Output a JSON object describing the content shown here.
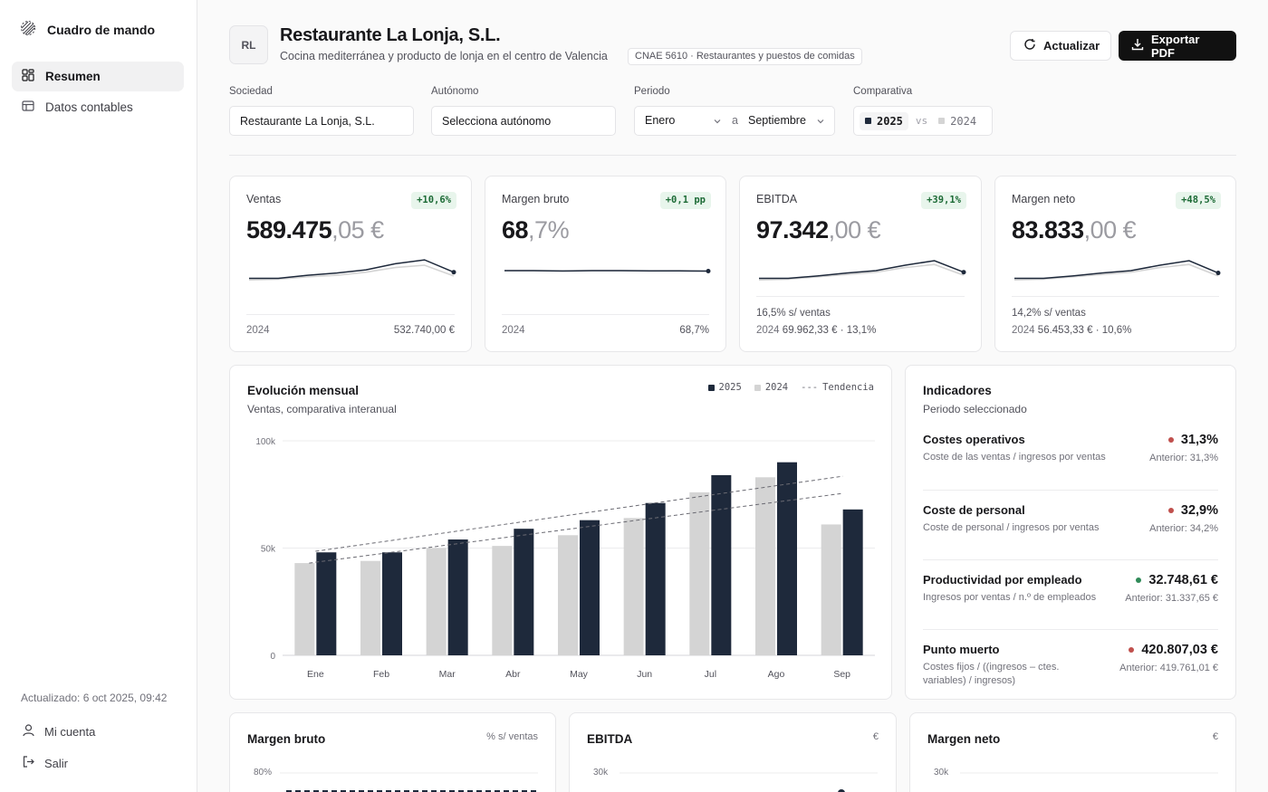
{
  "sidebar": {
    "brand": "Cuadro de mando",
    "items": [
      {
        "label": "Resumen",
        "icon": "dashboard-icon"
      },
      {
        "label": "Datos contables",
        "icon": "table-icon"
      }
    ],
    "updated": "Actualizado: 6 oct 2025, 09:42",
    "account": "Mi cuenta",
    "logout": "Salir"
  },
  "header": {
    "initials": "RL",
    "title": "Restaurante La Lonja, S.L.",
    "subtitle": "Cocina mediterránea y producto de lonja en el centro de Valencia",
    "cnae": "CNAE 5610 · Restaurantes y puestos de comidas",
    "refresh": "Actualizar",
    "export": "Exportar PDF"
  },
  "filters": {
    "sociedad_label": "Sociedad",
    "sociedad_value": "Restaurante La Lonja, S.L.",
    "autonomo_label": "Autónomo",
    "autonomo_value": "Selecciona autónomo",
    "periodo_label": "Periodo",
    "periodo_from": "Enero",
    "periodo_sep": "a",
    "periodo_to": "Septiembre",
    "comparativa_label": "Comparativa",
    "year_a": "2025",
    "vs": "vs",
    "year_b": "2024"
  },
  "kpis": [
    {
      "label": "Ventas",
      "badge": "+10,6%",
      "int": "589.475",
      "frac": ",05 €",
      "foot_left": "2024",
      "foot_right": "532.740,00 €"
    },
    {
      "label": "Margen bruto",
      "badge": "+0,1 pp",
      "int": "68",
      "frac": ",7%",
      "foot_left": "2024",
      "foot_right": "68,7%"
    },
    {
      "label": "EBITDA",
      "badge": "+39,1%",
      "int": "97.342",
      "frac": ",00 €",
      "sub": "16,5% s/ ventas",
      "prev_year": "2024",
      "prev": "69.962,33 € · 13,1%"
    },
    {
      "label": "Margen neto",
      "badge": "+48,5%",
      "int": "83.833",
      "frac": ",00 €",
      "sub": "14,2% s/ ventas",
      "prev_year": "2024",
      "prev": "56.453,33 € · 10,6%"
    }
  ],
  "monthly": {
    "title": "Evolución mensual",
    "subtitle": "Ventas, comparativa interanual",
    "legend": [
      "2025",
      "2024",
      "Tendencia"
    ],
    "legend_trend_marker": "---"
  },
  "indicators": {
    "title": "Indicadores",
    "subtitle": "Periodo seleccionado",
    "items": [
      {
        "name": "Costes operativos",
        "desc": "Coste de las ventas / ingresos por ventas",
        "value": "31,3%",
        "prev": "Anterior: 31,3%",
        "status": "bad"
      },
      {
        "name": "Coste de personal",
        "desc": "Coste de personal / ingresos por ventas",
        "value": "32,9%",
        "prev": "Anterior: 34,2%",
        "status": "bad"
      },
      {
        "name": "Productividad por empleado",
        "desc": "Ingresos por ventas / n.º de empleados",
        "value": "32.748,61 €",
        "prev": "Anterior: 31.337,65 €",
        "status": "good"
      },
      {
        "name": "Punto muerto",
        "desc": "Costes fijos / ((ingresos – ctes. variables) / ingresos)",
        "value": "420.807,03 €",
        "prev": "Anterior: 419.761,01 €",
        "status": "bad"
      }
    ]
  },
  "bottom_cards": [
    {
      "title": "Margen bruto",
      "unit": "% s/ ventas",
      "tick": "80%"
    },
    {
      "title": "EBITDA",
      "unit": "€",
      "tick": "30k"
    },
    {
      "title": "Margen neto",
      "unit": "€",
      "tick": "30k"
    }
  ],
  "colors": {
    "accent": "#1e293b",
    "prior": "#d4d4d4",
    "good": "#2f8a58",
    "bad": "#c0504d",
    "badge_bg": "#e8f5ec",
    "badge_fg": "#1d6b36"
  },
  "chart_data": [
    {
      "type": "bar",
      "categories": [
        "Ene",
        "Feb",
        "Mar",
        "Abr",
        "May",
        "Jun",
        "Jul",
        "Ago",
        "Sep"
      ],
      "series": [
        {
          "name": "2025",
          "values": [
            48000,
            48000,
            54000,
            59000,
            63000,
            71000,
            84000,
            90000,
            68000
          ]
        },
        {
          "name": "2024",
          "values": [
            43000,
            44000,
            50000,
            51000,
            56000,
            64000,
            76000,
            83000,
            61000
          ]
        }
      ],
      "trend_2025": [
        48500,
        83500
      ],
      "trend_2024": [
        43000,
        75500
      ],
      "yticks": [
        "0",
        "50k",
        "100k"
      ],
      "ylim": [
        0,
        100000
      ],
      "title": "Evolución mensual",
      "subtitle": "Ventas, comparativa interanual"
    }
  ],
  "sparklines": [
    {
      "current": [
        10,
        10,
        14,
        17,
        21,
        29,
        34,
        18
      ],
      "prior": [
        8,
        9,
        12,
        14,
        18,
        24,
        27,
        13
      ],
      "min": 0,
      "max": 40
    },
    {
      "current": [
        20,
        20,
        19.5,
        20,
        20,
        19.6,
        19.8,
        19.4
      ],
      "prior": [
        20,
        20,
        19.5,
        20,
        20,
        19.6,
        19.8,
        19.4
      ],
      "min": 0,
      "max": 40
    },
    {
      "current": [
        10,
        10,
        13,
        17,
        20,
        27,
        33,
        18
      ],
      "prior": [
        8,
        9,
        12,
        15,
        18,
        24,
        28,
        14
      ],
      "min": 0,
      "max": 40
    },
    {
      "current": [
        10,
        10,
        13,
        17,
        20,
        27,
        33,
        17
      ],
      "prior": [
        8,
        9,
        12,
        15,
        18,
        24,
        28,
        13
      ],
      "min": 0,
      "max": 40
    }
  ]
}
